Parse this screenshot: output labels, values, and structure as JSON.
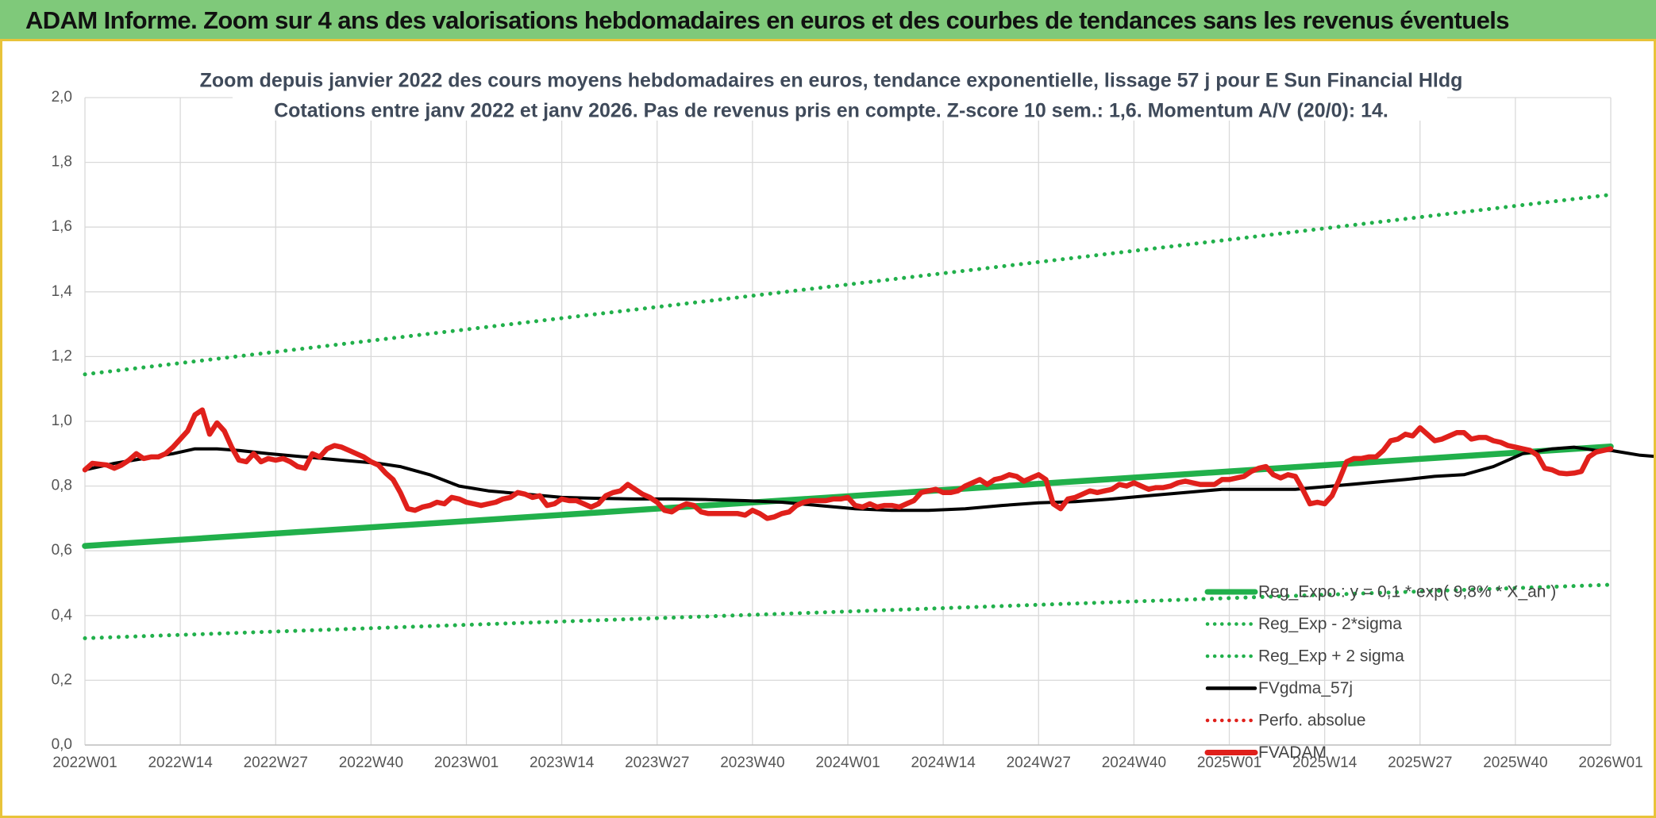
{
  "banner": {
    "title": "ADAM Informe. Zoom sur 4 ans des valorisations hebdomadaires en euros et des courbes de tendances sans les revenus éventuels"
  },
  "chart_data": {
    "type": "line",
    "title": "Zoom depuis janvier 2022 des cours moyens hebdomadaires en euros, tendance exponentielle, lissage 57 j pour E Sun Financial Hldg",
    "subtitle": "Cotations entre janv 2022 et janv 2026. Pas de revenus pris en compte. Z-score 10 sem.: 1,6. Momentum A/V (20/0): 14.",
    "xlabel": "",
    "ylabel": "",
    "x_ticks": [
      "2022W01",
      "2022W14",
      "2022W27",
      "2022W40",
      "2023W01",
      "2023W14",
      "2023W27",
      "2023W40",
      "2024W01",
      "2024W14",
      "2024W27",
      "2024W40",
      "2025W01",
      "2025W14",
      "2025W27",
      "2025W40",
      "2026W01"
    ],
    "y_ticks": [
      "0,0",
      "0,2",
      "0,4",
      "0,6",
      "0,8",
      "1,0",
      "1,2",
      "1,4",
      "1,6",
      "1,8",
      "2,0"
    ],
    "ylim": [
      0,
      2
    ],
    "grid": true,
    "legend_position": "bottom-right",
    "series": [
      {
        "name": "Reg_Expo : y = 0,1 * exp( 9,8% *  X_an )",
        "style": "solid",
        "color": "#21b04b",
        "points": [
          [
            0,
            0.615
          ],
          [
            208,
            0.922
          ]
        ]
      },
      {
        "name": "Reg_Exp - 2*sigma",
        "style": "dotted",
        "color": "#21b04b",
        "points": [
          [
            0,
            0.33
          ],
          [
            208,
            0.495
          ]
        ]
      },
      {
        "name": "Reg_Exp + 2 sigma",
        "style": "dotted",
        "color": "#21b04b",
        "points": [
          [
            0,
            1.145
          ],
          [
            208,
            1.7
          ]
        ]
      },
      {
        "name": "FVgdma_57j",
        "style": "solid",
        "color": "#000000",
        "points": [
          [
            0,
            0.85
          ],
          [
            4,
            0.87
          ],
          [
            8,
            0.885
          ],
          [
            12,
            0.9
          ],
          [
            15,
            0.915
          ],
          [
            18,
            0.915
          ],
          [
            21,
            0.91
          ],
          [
            25,
            0.9
          ],
          [
            30,
            0.89
          ],
          [
            35,
            0.88
          ],
          [
            40,
            0.87
          ],
          [
            43,
            0.86
          ],
          [
            47,
            0.835
          ],
          [
            51,
            0.8
          ],
          [
            55,
            0.785
          ],
          [
            60,
            0.775
          ],
          [
            65,
            0.765
          ],
          [
            70,
            0.762
          ],
          [
            75,
            0.76
          ],
          [
            80,
            0.76
          ],
          [
            85,
            0.758
          ],
          [
            90,
            0.755
          ],
          [
            95,
            0.75
          ],
          [
            100,
            0.74
          ],
          [
            105,
            0.73
          ],
          [
            110,
            0.725
          ],
          [
            115,
            0.725
          ],
          [
            120,
            0.73
          ],
          [
            125,
            0.74
          ],
          [
            130,
            0.748
          ],
          [
            135,
            0.752
          ],
          [
            140,
            0.76
          ],
          [
            145,
            0.77
          ],
          [
            150,
            0.78
          ],
          [
            155,
            0.79
          ],
          [
            160,
            0.79
          ],
          [
            165,
            0.79
          ],
          [
            170,
            0.8
          ],
          [
            175,
            0.81
          ],
          [
            180,
            0.82
          ],
          [
            184,
            0.83
          ],
          [
            188,
            0.835
          ],
          [
            192,
            0.86
          ],
          [
            196,
            0.9
          ],
          [
            200,
            0.915
          ],
          [
            203,
            0.92
          ],
          [
            206,
            0.91
          ],
          [
            208,
            0.91
          ],
          [
            212,
            0.895
          ],
          [
            215,
            0.89
          ],
          [
            219,
            0.895
          ],
          [
            222,
            0.905
          ]
        ]
      },
      {
        "name": "Perfo. absolue",
        "style": "dotted",
        "color": "#e0201b",
        "points": []
      },
      {
        "name": "FVADAM",
        "style": "solid",
        "color": "#e0201b",
        "points": [
          [
            0,
            0.85
          ],
          [
            1,
            0.87
          ],
          [
            3,
            0.865
          ],
          [
            4,
            0.855
          ],
          [
            5,
            0.865
          ],
          [
            6,
            0.88
          ],
          [
            7,
            0.9
          ],
          [
            8,
            0.885
          ],
          [
            9,
            0.89
          ],
          [
            10,
            0.89
          ],
          [
            11,
            0.9
          ],
          [
            12,
            0.92
          ],
          [
            13,
            0.945
          ],
          [
            14,
            0.97
          ],
          [
            15,
            1.02
          ],
          [
            16,
            1.035
          ],
          [
            17,
            0.96
          ],
          [
            18,
            0.995
          ],
          [
            19,
            0.97
          ],
          [
            20,
            0.92
          ],
          [
            21,
            0.88
          ],
          [
            22,
            0.875
          ],
          [
            23,
            0.9
          ],
          [
            24,
            0.875
          ],
          [
            25,
            0.885
          ],
          [
            26,
            0.88
          ],
          [
            27,
            0.885
          ],
          [
            28,
            0.875
          ],
          [
            29,
            0.86
          ],
          [
            30,
            0.855
          ],
          [
            31,
            0.9
          ],
          [
            32,
            0.89
          ],
          [
            33,
            0.915
          ],
          [
            34,
            0.925
          ],
          [
            35,
            0.92
          ],
          [
            36,
            0.91
          ],
          [
            37,
            0.9
          ],
          [
            38,
            0.89
          ],
          [
            39,
            0.875
          ],
          [
            40,
            0.865
          ],
          [
            41,
            0.84
          ],
          [
            42,
            0.82
          ],
          [
            43,
            0.78
          ],
          [
            44,
            0.73
          ],
          [
            45,
            0.725
          ],
          [
            46,
            0.735
          ],
          [
            47,
            0.74
          ],
          [
            48,
            0.75
          ],
          [
            49,
            0.745
          ],
          [
            50,
            0.765
          ],
          [
            51,
            0.76
          ],
          [
            52,
            0.75
          ],
          [
            53,
            0.745
          ],
          [
            54,
            0.74
          ],
          [
            55,
            0.745
          ],
          [
            56,
            0.75
          ],
          [
            57,
            0.76
          ],
          [
            58,
            0.765
          ],
          [
            59,
            0.78
          ],
          [
            60,
            0.775
          ],
          [
            61,
            0.765
          ],
          [
            62,
            0.77
          ],
          [
            63,
            0.74
          ],
          [
            64,
            0.745
          ],
          [
            65,
            0.76
          ],
          [
            66,
            0.755
          ],
          [
            67,
            0.755
          ],
          [
            68,
            0.745
          ],
          [
            69,
            0.735
          ],
          [
            70,
            0.745
          ],
          [
            71,
            0.77
          ],
          [
            72,
            0.78
          ],
          [
            73,
            0.785
          ],
          [
            74,
            0.805
          ],
          [
            75,
            0.79
          ],
          [
            76,
            0.775
          ],
          [
            77,
            0.765
          ],
          [
            78,
            0.75
          ],
          [
            79,
            0.725
          ],
          [
            80,
            0.72
          ],
          [
            81,
            0.735
          ],
          [
            82,
            0.745
          ],
          [
            83,
            0.74
          ],
          [
            84,
            0.72
          ],
          [
            85,
            0.715
          ],
          [
            86,
            0.715
          ],
          [
            87,
            0.715
          ],
          [
            88,
            0.715
          ],
          [
            89,
            0.715
          ],
          [
            90,
            0.71
          ],
          [
            91,
            0.725
          ],
          [
            92,
            0.715
          ],
          [
            93,
            0.7
          ],
          [
            94,
            0.705
          ],
          [
            95,
            0.715
          ],
          [
            96,
            0.72
          ],
          [
            97,
            0.74
          ],
          [
            98,
            0.75
          ],
          [
            99,
            0.755
          ],
          [
            100,
            0.755
          ],
          [
            101,
            0.755
          ],
          [
            102,
            0.76
          ],
          [
            103,
            0.76
          ],
          [
            104,
            0.765
          ],
          [
            105,
            0.74
          ],
          [
            106,
            0.735
          ],
          [
            107,
            0.745
          ],
          [
            108,
            0.735
          ],
          [
            109,
            0.74
          ],
          [
            110,
            0.74
          ],
          [
            111,
            0.735
          ],
          [
            112,
            0.745
          ],
          [
            113,
            0.755
          ],
          [
            114,
            0.78
          ],
          [
            115,
            0.785
          ],
          [
            116,
            0.79
          ],
          [
            117,
            0.78
          ],
          [
            118,
            0.78
          ],
          [
            119,
            0.785
          ],
          [
            120,
            0.8
          ],
          [
            121,
            0.81
          ],
          [
            122,
            0.82
          ],
          [
            123,
            0.805
          ],
          [
            124,
            0.82
          ],
          [
            125,
            0.825
          ],
          [
            126,
            0.835
          ],
          [
            127,
            0.83
          ],
          [
            128,
            0.815
          ],
          [
            129,
            0.825
          ],
          [
            130,
            0.835
          ],
          [
            131,
            0.82
          ],
          [
            132,
            0.745
          ],
          [
            133,
            0.73
          ],
          [
            134,
            0.76
          ],
          [
            135,
            0.765
          ],
          [
            136,
            0.775
          ],
          [
            137,
            0.785
          ],
          [
            138,
            0.78
          ],
          [
            139,
            0.785
          ],
          [
            140,
            0.79
          ],
          [
            141,
            0.805
          ],
          [
            142,
            0.8
          ],
          [
            143,
            0.81
          ],
          [
            144,
            0.8
          ],
          [
            145,
            0.79
          ],
          [
            146,
            0.795
          ],
          [
            147,
            0.795
          ],
          [
            148,
            0.8
          ],
          [
            149,
            0.81
          ],
          [
            150,
            0.815
          ],
          [
            151,
            0.81
          ],
          [
            152,
            0.805
          ],
          [
            153,
            0.805
          ],
          [
            154,
            0.805
          ],
          [
            155,
            0.82
          ],
          [
            156,
            0.82
          ],
          [
            157,
            0.825
          ],
          [
            158,
            0.83
          ],
          [
            159,
            0.845
          ],
          [
            160,
            0.855
          ],
          [
            161,
            0.86
          ],
          [
            162,
            0.835
          ],
          [
            163,
            0.825
          ],
          [
            164,
            0.835
          ],
          [
            165,
            0.83
          ],
          [
            166,
            0.79
          ],
          [
            167,
            0.745
          ],
          [
            168,
            0.75
          ],
          [
            169,
            0.745
          ],
          [
            170,
            0.77
          ],
          [
            171,
            0.82
          ],
          [
            172,
            0.875
          ],
          [
            173,
            0.885
          ],
          [
            174,
            0.885
          ],
          [
            175,
            0.89
          ],
          [
            176,
            0.89
          ],
          [
            177,
            0.91
          ],
          [
            178,
            0.94
          ],
          [
            179,
            0.945
          ],
          [
            180,
            0.96
          ],
          [
            181,
            0.955
          ],
          [
            182,
            0.98
          ],
          [
            183,
            0.96
          ],
          [
            184,
            0.94
          ],
          [
            185,
            0.945
          ],
          [
            186,
            0.955
          ],
          [
            187,
            0.965
          ],
          [
            188,
            0.965
          ],
          [
            189,
            0.945
          ],
          [
            190,
            0.95
          ],
          [
            191,
            0.95
          ],
          [
            192,
            0.94
          ],
          [
            193,
            0.935
          ],
          [
            194,
            0.925
          ],
          [
            195,
            0.92
          ],
          [
            196,
            0.915
          ],
          [
            197,
            0.91
          ],
          [
            198,
            0.895
          ],
          [
            199,
            0.855
          ],
          [
            200,
            0.85
          ],
          [
            201,
            0.84
          ],
          [
            202,
            0.838
          ],
          [
            203,
            0.84
          ],
          [
            204,
            0.845
          ],
          [
            205,
            0.89
          ],
          [
            206,
            0.905
          ],
          [
            207,
            0.91
          ],
          [
            208,
            0.915
          ]
        ]
      }
    ]
  }
}
